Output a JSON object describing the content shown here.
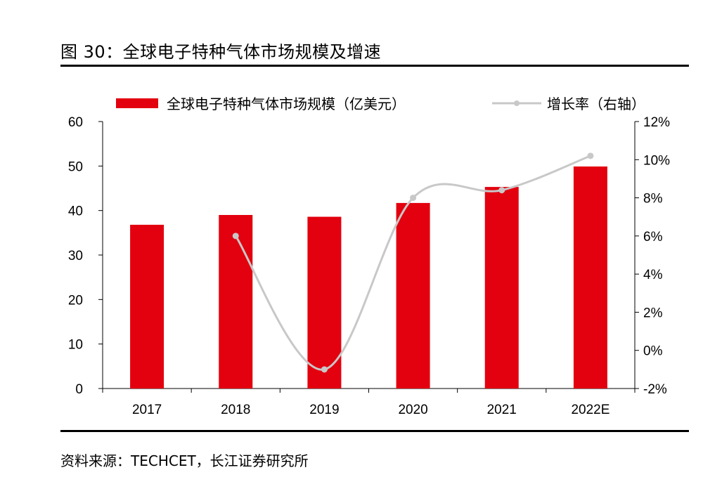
{
  "figure": {
    "title": "图 30：全球电子特种气体市场规模及增速",
    "source": "资料来源：TECHCET，长江证券研究所"
  },
  "colors": {
    "bar": "#e3000f",
    "line": "#c8c8c8",
    "axis": "#000000"
  },
  "chart_data": {
    "type": "bar",
    "categories": [
      "2017",
      "2018",
      "2019",
      "2020",
      "2021",
      "2022E"
    ],
    "series": [
      {
        "name": "全球电子特种气体市场规模（亿美元）",
        "type": "bar",
        "axis": "left",
        "values": [
          36.8,
          39.0,
          38.6,
          41.7,
          45.3,
          49.9
        ]
      },
      {
        "name": "增长率（右轴）",
        "type": "line",
        "axis": "right",
        "values": [
          null,
          6.0,
          -1.0,
          8.0,
          8.4,
          10.2
        ]
      }
    ],
    "y_left": {
      "ylim": [
        0,
        60
      ],
      "ticks": [
        "0",
        "10",
        "20",
        "30",
        "40",
        "50",
        "60"
      ],
      "tick_values": [
        0,
        10,
        20,
        30,
        40,
        50,
        60
      ]
    },
    "y_right": {
      "ylim": [
        -2,
        12
      ],
      "ticks": [
        "-2%",
        "0%",
        "2%",
        "4%",
        "6%",
        "8%",
        "10%",
        "12%"
      ],
      "tick_values": [
        -2,
        0,
        2,
        4,
        6,
        8,
        10,
        12
      ]
    },
    "legend_position": "top",
    "grid": false
  }
}
